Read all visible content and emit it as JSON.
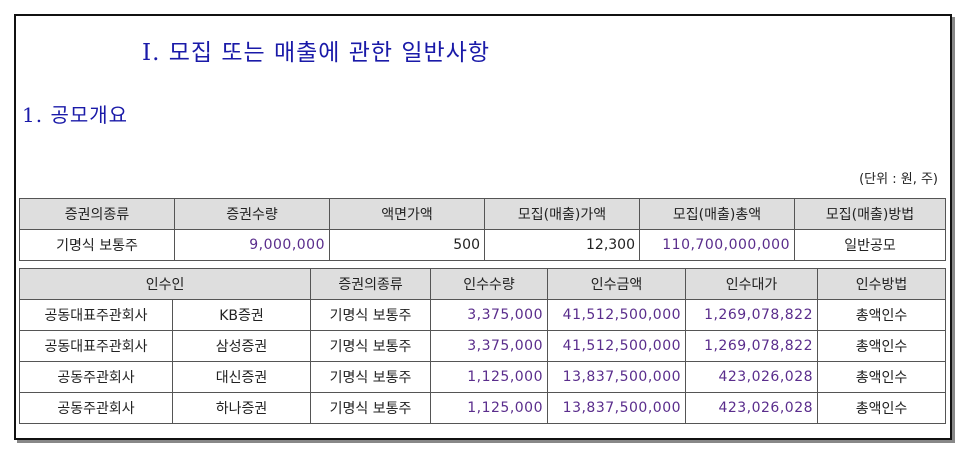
{
  "title": "I. 모집 또는 매출에 관한 일반사항",
  "subtitle": "1. 공모개요",
  "unit_note": "(단위 : 원, 주)",
  "table1": {
    "headers": [
      "증권의종류",
      "증권수량",
      "액면가액",
      "모집(매출)가액",
      "모집(매출)총액",
      "모집(매출)방법"
    ],
    "row": [
      "기명식 보통주",
      "9,000,000",
      "500",
      "12,300",
      "110,700,000,000",
      "일반공모"
    ]
  },
  "table2": {
    "headers": [
      "인수인",
      "증권의종류",
      "인수수량",
      "인수금액",
      "인수대가",
      "인수방법"
    ],
    "rows": [
      [
        "공동대표주관회사",
        "KB증권",
        "기명식 보통주",
        "3,375,000",
        "41,512,500,000",
        "1,269,078,822",
        "총액인수"
      ],
      [
        "공동대표주관회사",
        "삼성증권",
        "기명식 보통주",
        "3,375,000",
        "41,512,500,000",
        "1,269,078,822",
        "총액인수"
      ],
      [
        "공동주관회사",
        "대신증권",
        "기명식 보통주",
        "1,125,000",
        "13,837,500,000",
        "423,026,028",
        "총액인수"
      ],
      [
        "공동주관회사",
        "하나증권",
        "기명식 보통주",
        "1,125,000",
        "13,837,500,000",
        "423,026,028",
        "총액인수"
      ]
    ]
  }
}
